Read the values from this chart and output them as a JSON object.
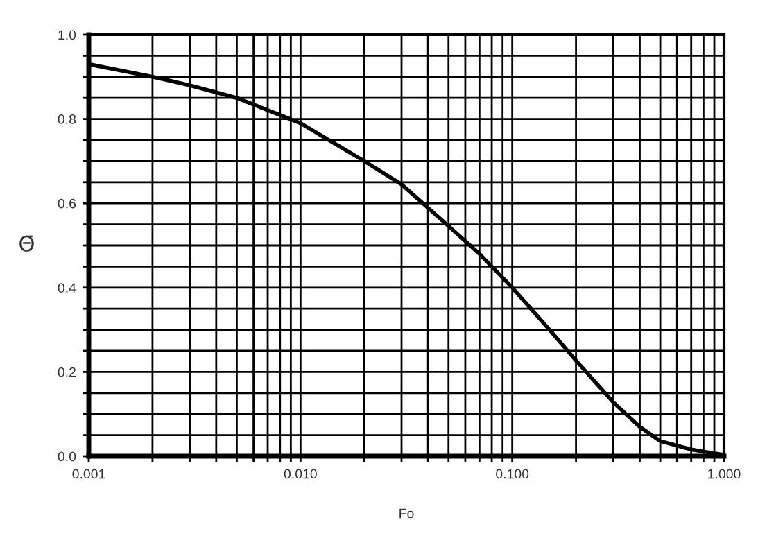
{
  "chart_data": {
    "type": "line",
    "xlabel": "Fo",
    "ylabel": "Θ̄",
    "log": "x",
    "grid": true,
    "marker": "none",
    "line_style": "solid",
    "x": [
      0.001,
      0.002,
      0.003,
      0.005,
      0.01,
      0.02,
      0.03,
      0.05,
      0.07,
      0.1,
      0.15,
      0.2,
      0.3,
      0.4,
      0.5,
      0.7,
      1.0
    ],
    "series": [
      {
        "color": "#000000",
        "values": [
          0.93,
          0.9,
          0.88,
          0.85,
          0.79,
          0.7,
          0.645,
          0.546,
          0.48,
          0.4,
          0.3,
          0.227,
          0.128,
          0.07,
          0.036,
          0.016,
          0.003
        ]
      }
    ],
    "xlim": [
      0.001,
      1.0
    ],
    "xticks": [
      {
        "value": 0.001,
        "label": "0.001"
      },
      {
        "value": 0.002,
        "label": null
      },
      {
        "value": 0.003,
        "label": null
      },
      {
        "value": 0.004,
        "label": null
      },
      {
        "value": 0.005,
        "label": null
      },
      {
        "value": 0.006,
        "label": null
      },
      {
        "value": 0.007,
        "label": null
      },
      {
        "value": 0.008,
        "label": null
      },
      {
        "value": 0.009,
        "label": null
      },
      {
        "value": 0.01,
        "label": "0.010"
      },
      {
        "value": 0.02,
        "label": null
      },
      {
        "value": 0.03,
        "label": null
      },
      {
        "value": 0.04,
        "label": null
      },
      {
        "value": 0.05,
        "label": null
      },
      {
        "value": 0.06,
        "label": null
      },
      {
        "value": 0.07,
        "label": null
      },
      {
        "value": 0.08,
        "label": null
      },
      {
        "value": 0.09,
        "label": null
      },
      {
        "value": 0.1,
        "label": "0.100"
      },
      {
        "value": 0.2,
        "label": null
      },
      {
        "value": 0.3,
        "label": null
      },
      {
        "value": 0.4,
        "label": null
      },
      {
        "value": 0.5,
        "label": null
      },
      {
        "value": 0.6,
        "label": null
      },
      {
        "value": 0.7,
        "label": null
      },
      {
        "value": 0.8,
        "label": null
      },
      {
        "value": 0.9,
        "label": null
      },
      {
        "value": 1.0,
        "label": "1.000"
      }
    ],
    "ylim": [
      0,
      1.0
    ],
    "yticks": [
      {
        "value": 0,
        "label": "0.0"
      },
      {
        "value": 0.05,
        "label": null
      },
      {
        "value": 0.1,
        "label": null
      },
      {
        "value": 0.15,
        "label": null
      },
      {
        "value": 0.2,
        "label": "0.2"
      },
      {
        "value": 0.25,
        "label": null
      },
      {
        "value": 0.3,
        "label": null
      },
      {
        "value": 0.35,
        "label": null
      },
      {
        "value": 0.4,
        "label": "0.4"
      },
      {
        "value": 0.45,
        "label": null
      },
      {
        "value": 0.5,
        "label": null
      },
      {
        "value": 0.55,
        "label": null
      },
      {
        "value": 0.6,
        "label": "0.6"
      },
      {
        "value": 0.65,
        "label": null
      },
      {
        "value": 0.7,
        "label": null
      },
      {
        "value": 0.75,
        "label": null
      },
      {
        "value": 0.8,
        "label": "0.8"
      },
      {
        "value": 0.85,
        "label": null
      },
      {
        "value": 0.9,
        "label": null
      },
      {
        "value": 0.95,
        "label": null
      },
      {
        "value": 1.0,
        "label": "1.0"
      }
    ]
  }
}
